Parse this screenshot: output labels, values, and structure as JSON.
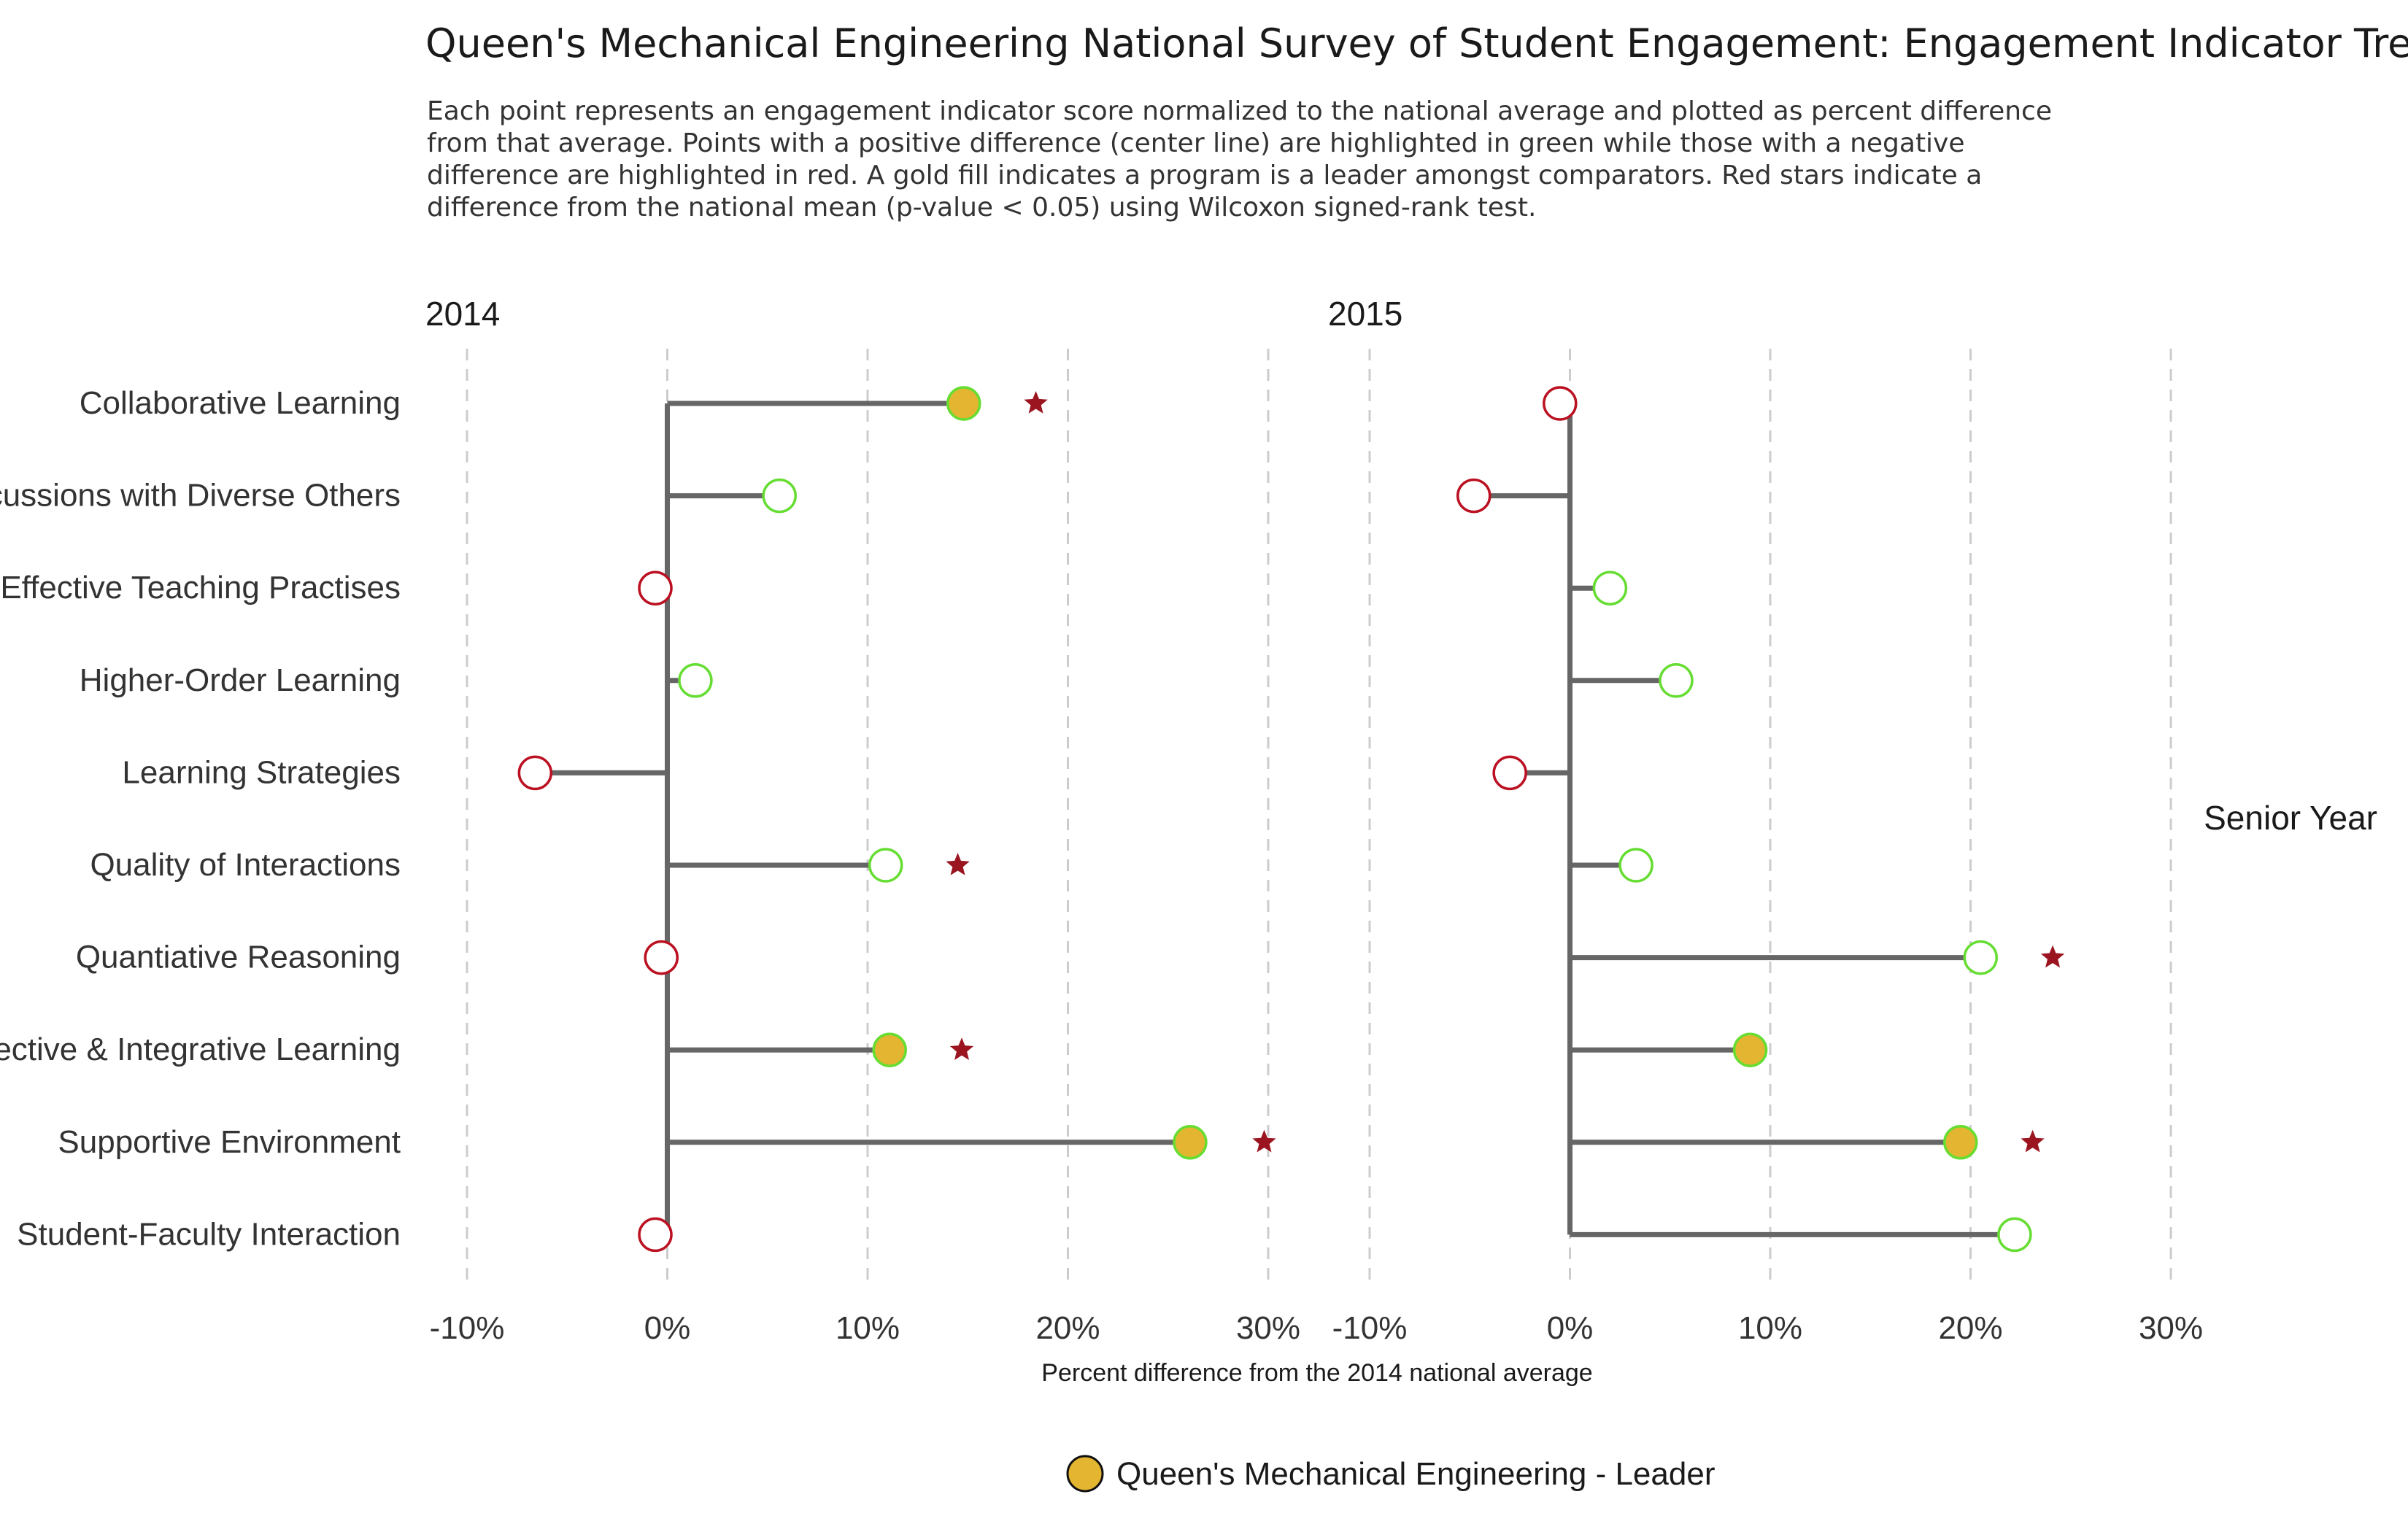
{
  "title": "Queen's Mechanical Engineering National Survey of Student Engagement: Engagement Indicator Tree",
  "subtitle_lines": [
    "Each point represents an engagement indicator score normalized to the national average and plotted as percent difference",
    "from that average. Points with a positive difference (center line) are highlighted in green while those with a negative",
    "difference are highlighted in red. A gold fill indicates a program is a leader amongst comparators. Red stars indicate a",
    "difference from the national mean (p-value < 0.05) using Wilcoxon signed-rank test."
  ],
  "chart_data": {
    "type": "lollipop",
    "categories": [
      "Collaborative Learning",
      "Discussions with Diverse Others",
      "Effective Teaching Practises",
      "Higher-Order Learning",
      "Learning Strategies",
      "Quality of Interactions",
      "Quantiative Reasoning",
      "Reflective & Integrative Learning",
      "Supportive Environment",
      "Student-Faculty Interaction"
    ],
    "xlim": [
      -10,
      30
    ],
    "ticks": [
      -10,
      0,
      10,
      20,
      30
    ],
    "tick_labels": [
      "-10%",
      "0%",
      "10%",
      "20%",
      "30%"
    ],
    "xlabel": "Percent difference from the 2014 national average",
    "facet_label": "Senior Year",
    "panels": [
      {
        "name": "2014",
        "values": [
          14.8,
          5.6,
          -0.6,
          1.4,
          -6.6,
          10.9,
          -0.3,
          11.1,
          26.1,
          -0.6
        ],
        "leader": [
          true,
          false,
          false,
          false,
          false,
          false,
          false,
          true,
          true,
          false
        ],
        "significant": [
          true,
          false,
          false,
          false,
          false,
          true,
          false,
          true,
          true,
          false
        ],
        "star_values": [
          18.4,
          null,
          null,
          null,
          null,
          14.5,
          null,
          14.7,
          29.8,
          null
        ]
      },
      {
        "name": "2015",
        "values": [
          -0.5,
          -4.8,
          2.0,
          5.3,
          -3.0,
          3.3,
          20.5,
          9.0,
          19.5,
          22.2
        ],
        "leader": [
          false,
          false,
          false,
          false,
          false,
          false,
          false,
          true,
          true,
          false
        ],
        "significant": [
          false,
          false,
          false,
          false,
          false,
          false,
          true,
          false,
          true,
          false
        ],
        "star_values": [
          null,
          null,
          null,
          null,
          null,
          null,
          24.1,
          null,
          23.1,
          null
        ]
      }
    ],
    "legend": {
      "label": "Queen's Mechanical Engineering - Leader",
      "position": "bottom-center"
    },
    "grid": "vertical dashed"
  },
  "colors": {
    "positive": "#66dd33",
    "negative": "#bb1122",
    "leader_fill": "#e3b530",
    "stem": "#666666",
    "star": "#9b1520",
    "grid": "#cccccc"
  }
}
